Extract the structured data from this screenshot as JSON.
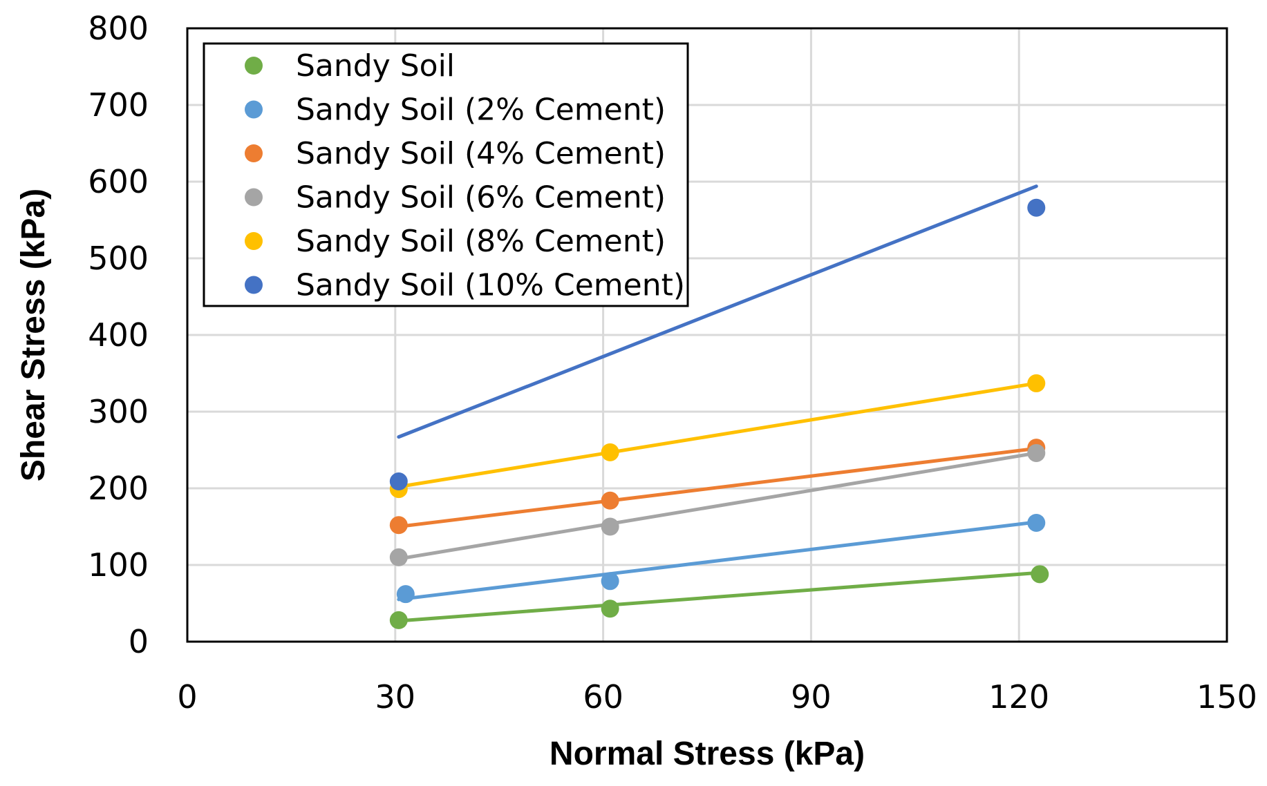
{
  "chart_data": {
    "type": "scatter",
    "xlabel": "Normal Stress (kPa)",
    "ylabel": "Shear Stress (kPa)",
    "xlim": [
      0,
      150
    ],
    "ylim": [
      0,
      800
    ],
    "x_ticks": [
      0,
      30,
      60,
      90,
      120,
      150
    ],
    "y_ticks": [
      0,
      100,
      200,
      300,
      400,
      500,
      600,
      700,
      800
    ],
    "x_tick_labels": [
      "0",
      "30",
      "60",
      "90",
      "120",
      "150"
    ],
    "y_tick_labels": [
      "0",
      "100",
      "200",
      "300",
      "400",
      "500",
      "600",
      "700",
      "800"
    ],
    "grid": true,
    "legend_position": "top-left",
    "series": [
      {
        "name": "Sandy Soil",
        "color": "#70ad47",
        "points": [
          [
            30.5,
            28
          ],
          [
            61,
            43
          ],
          [
            123,
            88
          ]
        ],
        "trendline": [
          [
            30.5,
            27
          ],
          [
            123,
            90
          ]
        ]
      },
      {
        "name": "Sandy Soil (2% Cement)",
        "color": "#5b9bd5",
        "points": [
          [
            31.5,
            62
          ],
          [
            61,
            79
          ],
          [
            122.5,
            155
          ]
        ],
        "trendline": [
          [
            30.5,
            55
          ],
          [
            122.5,
            156
          ]
        ]
      },
      {
        "name": "Sandy Soil (4% Cement)",
        "color": "#ed7d31",
        "points": [
          [
            30.5,
            152
          ],
          [
            61,
            184
          ],
          [
            122.5,
            253
          ]
        ],
        "trendline": [
          [
            30.5,
            150
          ],
          [
            122.5,
            252
          ]
        ]
      },
      {
        "name": "Sandy Soil (6% Cement)",
        "color": "#a5a5a5",
        "points": [
          [
            30.5,
            110
          ],
          [
            61,
            150
          ],
          [
            122.5,
            246
          ]
        ],
        "trendline": [
          [
            30.5,
            108
          ],
          [
            122.5,
            246
          ]
        ]
      },
      {
        "name": "Sandy Soil (8% Cement)",
        "color": "#ffc000",
        "points": [
          [
            30.5,
            199
          ],
          [
            61,
            247
          ],
          [
            122.5,
            337
          ]
        ],
        "trendline": [
          [
            30.5,
            202
          ],
          [
            122.5,
            337
          ]
        ]
      },
      {
        "name": "Sandy Soil (10% Cement)",
        "color": "#4472c4",
        "points": [
          [
            30.5,
            209
          ],
          [
            122.5,
            566
          ]
        ],
        "trendline": [
          [
            30.5,
            267
          ],
          [
            122.5,
            594
          ]
        ]
      }
    ]
  }
}
